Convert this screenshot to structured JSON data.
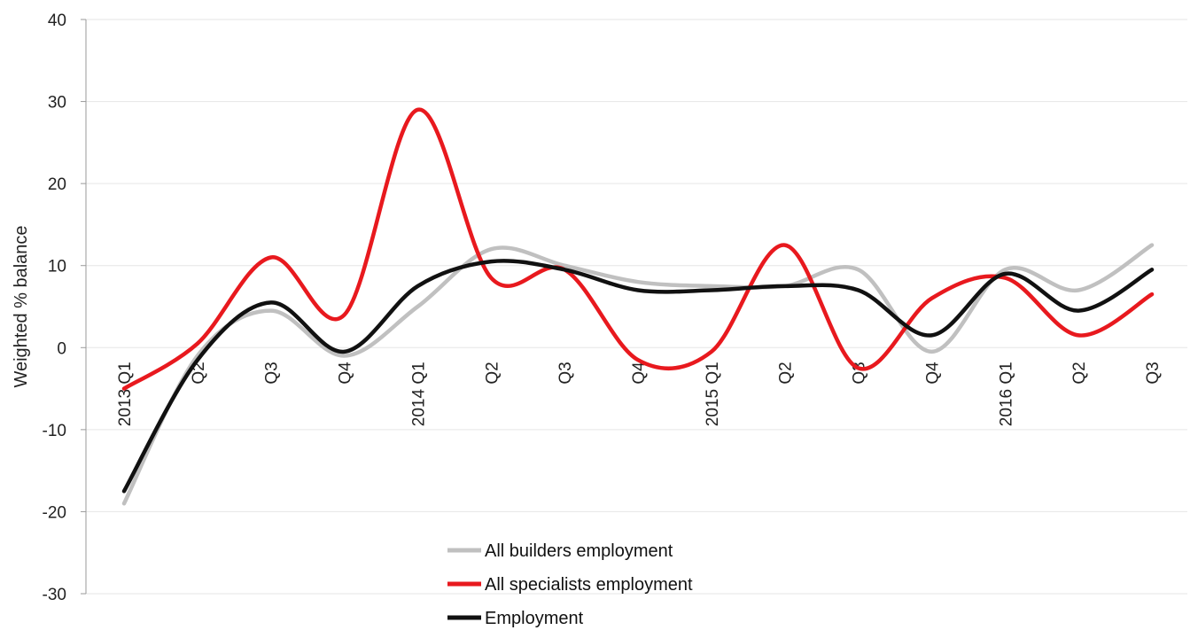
{
  "chart_data": {
    "type": "line",
    "xlabel": "",
    "ylabel": "Weighted % balance",
    "ylim": [
      -30,
      40
    ],
    "yticks": [
      40,
      30,
      20,
      10,
      0,
      -10,
      -20,
      -30
    ],
    "categories": [
      "2013 Q1",
      "Q2",
      "Q3",
      "Q4",
      "2014 Q1",
      "Q2",
      "Q3",
      "Q4",
      "2015 Q1",
      "Q2",
      "Q3",
      "Q4",
      "2016 Q1",
      "Q2",
      "Q3"
    ],
    "grid": true,
    "legend_position": "bottom-center",
    "series": [
      {
        "name": "All builders employment",
        "color": "#c0c0c0",
        "values": [
          -19,
          -1,
          4.5,
          -1,
          5,
          12,
          10,
          8,
          7.5,
          7.5,
          9.5,
          -0.5,
          9.5,
          7,
          12.5
        ]
      },
      {
        "name": "All specialists employment",
        "color": "#e8191e",
        "values": [
          -5,
          0.5,
          11,
          4,
          29,
          8.5,
          9.5,
          -1.5,
          -0.5,
          12.5,
          -2.5,
          6,
          8.5,
          1.5,
          6.5
        ]
      },
      {
        "name": "Employment",
        "color": "#111111",
        "values": [
          -17.5,
          -1.5,
          5.5,
          -0.5,
          7.5,
          10.5,
          9.5,
          7,
          7,
          7.5,
          7,
          1.5,
          9,
          4.5,
          9.5
        ]
      }
    ]
  }
}
